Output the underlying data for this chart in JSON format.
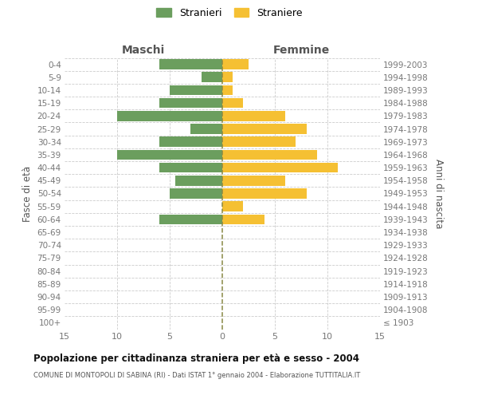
{
  "age_groups": [
    "100+",
    "95-99",
    "90-94",
    "85-89",
    "80-84",
    "75-79",
    "70-74",
    "65-69",
    "60-64",
    "55-59",
    "50-54",
    "45-49",
    "40-44",
    "35-39",
    "30-34",
    "25-29",
    "20-24",
    "15-19",
    "10-14",
    "5-9",
    "0-4"
  ],
  "birth_years": [
    "≤ 1903",
    "1904-1908",
    "1909-1913",
    "1914-1918",
    "1919-1923",
    "1924-1928",
    "1929-1933",
    "1934-1938",
    "1939-1943",
    "1944-1948",
    "1949-1953",
    "1954-1958",
    "1959-1963",
    "1964-1968",
    "1969-1973",
    "1974-1978",
    "1979-1983",
    "1984-1988",
    "1989-1993",
    "1994-1998",
    "1999-2003"
  ],
  "maschi": [
    0,
    0,
    0,
    0,
    0,
    0,
    0,
    0,
    6,
    0,
    5,
    4.5,
    6,
    10,
    6,
    3,
    10,
    6,
    5,
    2,
    6
  ],
  "femmine": [
    0,
    0,
    0,
    0,
    0,
    0,
    0,
    0,
    4,
    2,
    8,
    6,
    11,
    9,
    7,
    8,
    6,
    2,
    1,
    1,
    2.5
  ],
  "male_color": "#6b9e5e",
  "female_color": "#f5c033",
  "center_line_color": "#888844",
  "grid_color": "#cccccc",
  "bg_color": "#ffffff",
  "xlim": 15,
  "title": "Popolazione per cittadinanza straniera per età e sesso - 2004",
  "subtitle": "COMUNE DI MONTOPOLI DI SABINA (RI) - Dati ISTAT 1° gennaio 2004 - Elaborazione TUTTITALIA.IT",
  "ylabel_left": "Fasce di età",
  "ylabel_right": "Anni di nascita",
  "label_maschi": "Maschi",
  "label_femmine": "Femmine",
  "legend_maschi": "Stranieri",
  "legend_femmine": "Straniere",
  "tick_color": "#777777",
  "label_color": "#555555",
  "title_color": "#111111"
}
